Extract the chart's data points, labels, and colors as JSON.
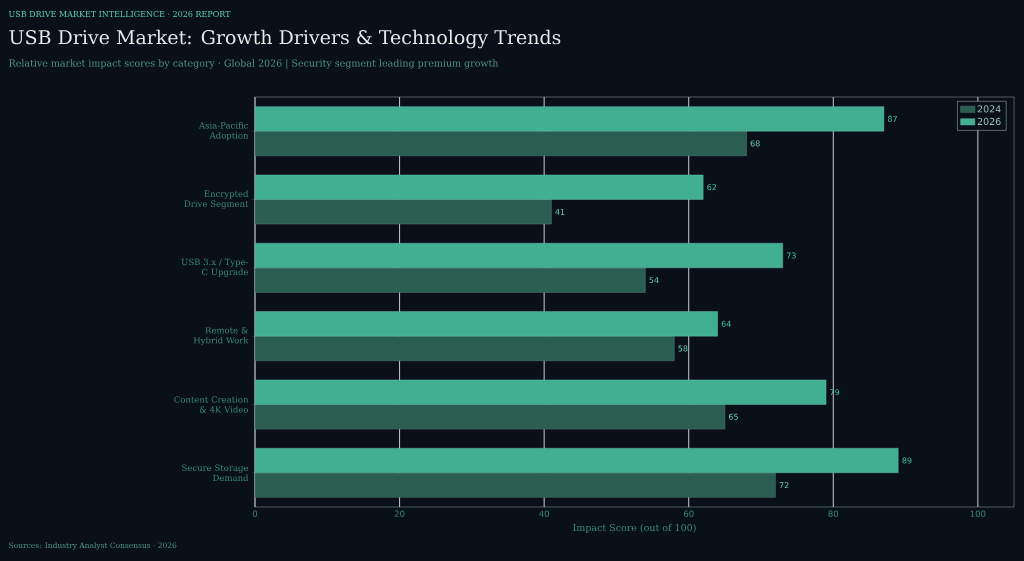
{
  "chart_data": {
    "type": "bar",
    "orientation": "horizontal",
    "title": "USB Drive Market: Growth Drivers & Technology Trends",
    "subtitle": "Relative market impact scores by category  ·  Global 2026   |   Security segment leading premium growth",
    "xlabel": "Impact Score (out of 100)",
    "annotations": [
      "USB DRIVE MARKET INTELLIGENCE  ·  2026 REPORT",
      "Sources: Industry Analyst Consensus · 2026"
    ],
    "categories": [
      "Asia-Pacific Adoption",
      "Encrypted Drive Segment",
      "USB 3.x / Type-C Upgrade",
      "Remote & Hybrid Work",
      "Content Creation & 4K Video",
      "Secure Storage Demand"
    ],
    "series": [
      {
        "name": "2024",
        "color": "#2a5e50",
        "values": [
          68,
          41,
          54,
          58,
          65,
          72
        ]
      },
      {
        "name": "2026",
        "color": "#40b090",
        "values": [
          87,
          62,
          73,
          64,
          79,
          89
        ]
      }
    ],
    "xlim": [
      0,
      105
    ],
    "xticks": [
      0,
      20,
      40,
      60,
      80,
      100
    ],
    "grid": "x",
    "legend": "top right",
    "data_labels": true
  }
}
